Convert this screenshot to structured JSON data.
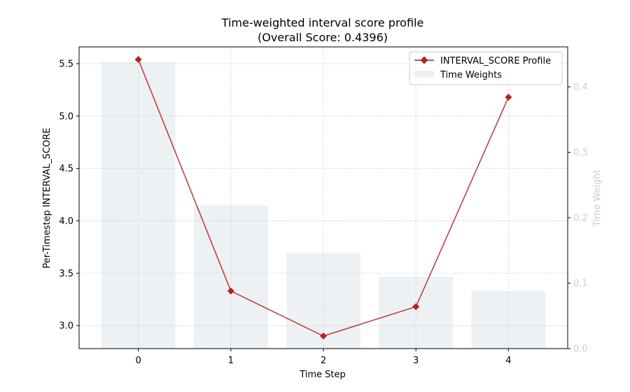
{
  "chart_data": {
    "type": "bar+line",
    "title_line1": "Time-weighted interval score profile",
    "title_line2": "(Overall Score: 0.4396)",
    "xlabel": "Time Step",
    "ylabel": "Per-Timestep INTERVAL_SCORE",
    "y2label": "Time Weight",
    "x": [
      0,
      1,
      2,
      3,
      4
    ],
    "x_tick_labels": [
      "0",
      "1",
      "2",
      "3",
      "4"
    ],
    "y_ticks": [
      3.0,
      3.5,
      4.0,
      4.5,
      5.0,
      5.5
    ],
    "y_tick_labels": [
      "3.0",
      "3.5",
      "4.0",
      "4.5",
      "5.0",
      "5.5"
    ],
    "y2_ticks": [
      0.0,
      0.1,
      0.2,
      0.3,
      0.4
    ],
    "y2_tick_labels": [
      "0.0",
      "0.1",
      "0.2",
      "0.3",
      "0.4"
    ],
    "xlim": [
      -0.64,
      4.64
    ],
    "ylim": [
      2.78,
      5.66
    ],
    "y2lim": [
      0.0,
      0.461
    ],
    "grid": true,
    "legend_position": "top-right",
    "series": [
      {
        "name": "INTERVAL_SCORE Profile",
        "type": "line",
        "marker": "diamond",
        "color": "#b22222",
        "values": [
          5.54,
          3.33,
          2.9,
          3.18,
          5.18
        ]
      },
      {
        "name": "Time Weights",
        "type": "bar",
        "color": "#eef1f4",
        "values": [
          0.438,
          0.219,
          0.146,
          0.11,
          0.088
        ]
      }
    ]
  }
}
